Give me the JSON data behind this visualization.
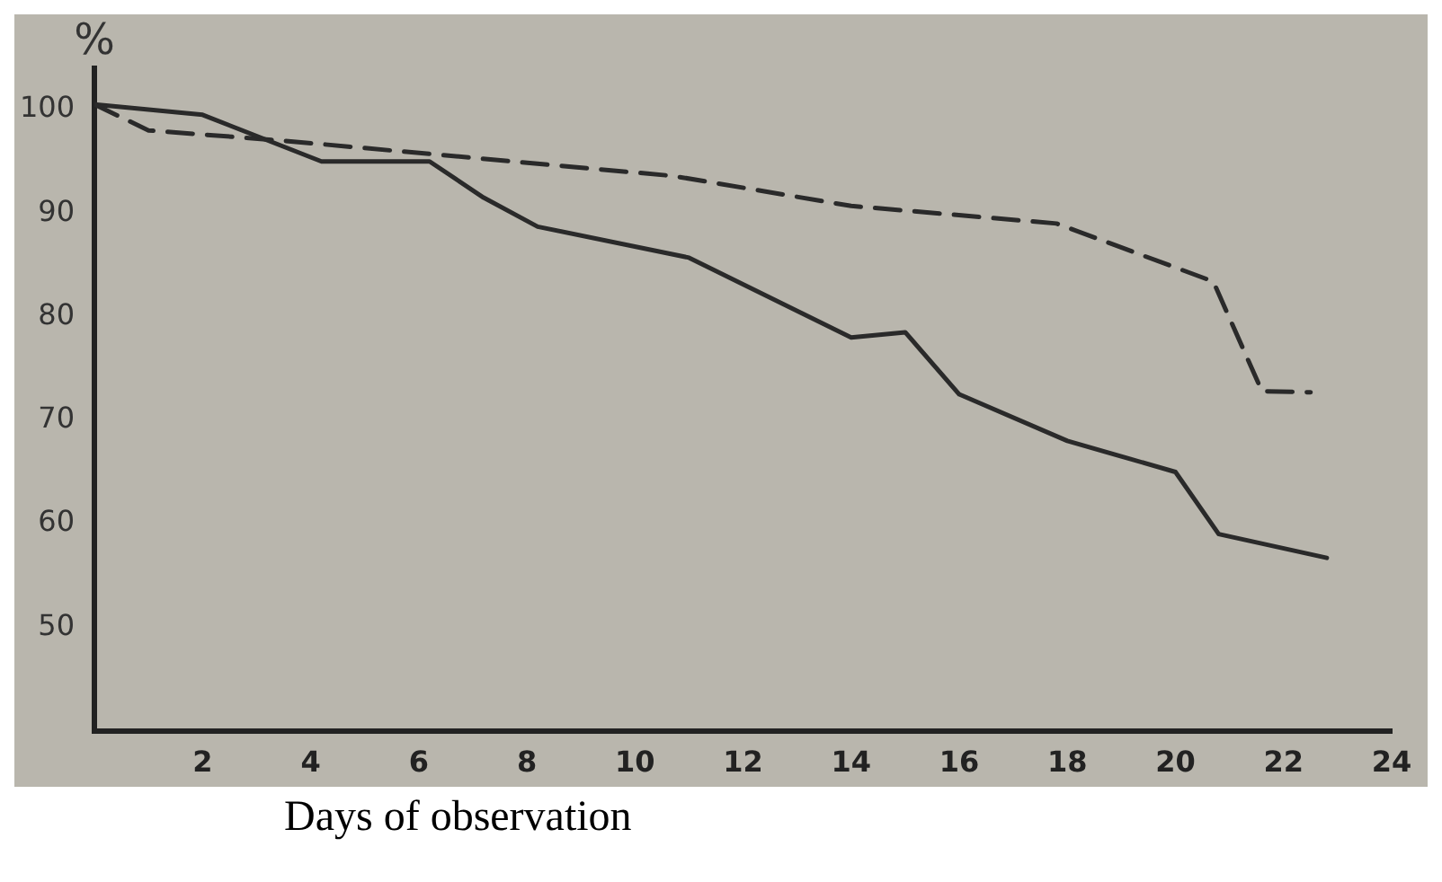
{
  "chart_data": {
    "type": "line",
    "xlabel": "Days of observation",
    "ylabel": "%",
    "xlim": [
      0,
      24
    ],
    "xticks": [
      2,
      4,
      6,
      8,
      10,
      12,
      14,
      16,
      18,
      20,
      22,
      24
    ],
    "ylim": [
      40,
      104
    ],
    "yticks": [
      50,
      60,
      70,
      80,
      90,
      100
    ],
    "grid": false,
    "legend": false,
    "marker": "none",
    "series": [
      {
        "color": "#2a2a2a",
        "line_style": "solid",
        "x": [
          0,
          2,
          4.2,
          6.2,
          7.2,
          8.2,
          11,
          14,
          15,
          16,
          18,
          20,
          20.8,
          22.8
        ],
        "values": [
          100.5,
          99.5,
          95,
          95,
          91.5,
          88.7,
          85.7,
          78,
          78.5,
          72.5,
          68,
          65,
          59,
          56.7
        ]
      },
      {
        "color": "#2a2a2a",
        "line_style": "dashed",
        "x": [
          0,
          1,
          3.5,
          10.7,
          14,
          17.8,
          20.7,
          21.6,
          22.5
        ],
        "values": [
          100.5,
          98,
          97,
          93.6,
          90.7,
          89,
          83.4,
          72.8,
          72.7
        ]
      }
    ]
  }
}
